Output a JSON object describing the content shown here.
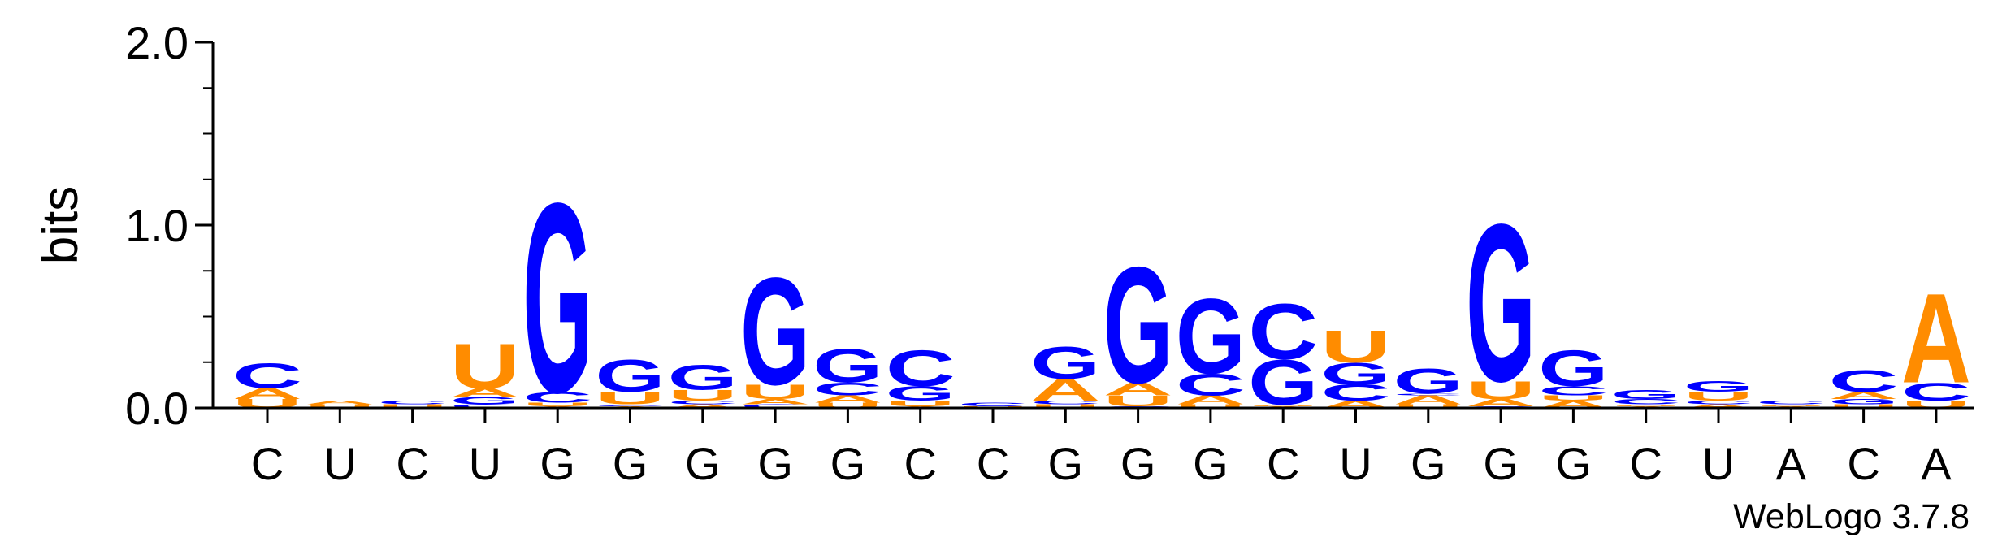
{
  "chart_data": {
    "type": "sequence-logo",
    "ylabel": "bits",
    "ylim": [
      0,
      2.0
    ],
    "yticks": [
      "0.0",
      "1.0",
      "2.0"
    ],
    "xlabels": [
      "C",
      "U",
      "C",
      "U",
      "G",
      "G",
      "G",
      "G",
      "G",
      "C",
      "C",
      "G",
      "G",
      "G",
      "C",
      "U",
      "G",
      "G",
      "G",
      "C",
      "U",
      "A",
      "C",
      "A"
    ],
    "colors": {
      "G": "#0000ff",
      "C": "#0000ff",
      "A": "#ff8c00",
      "U": "#ff8c00"
    },
    "positions": [
      [
        {
          "letter": "U",
          "bits": 0.05
        },
        {
          "letter": "A",
          "bits": 0.06
        },
        {
          "letter": "C",
          "bits": 0.14
        }
      ],
      [
        {
          "letter": "U",
          "bits": 0.02
        },
        {
          "letter": "A",
          "bits": 0.02
        }
      ],
      [
        {
          "letter": "U",
          "bits": 0.02
        },
        {
          "letter": "C",
          "bits": 0.02
        }
      ],
      [
        {
          "letter": "C",
          "bits": 0.02
        },
        {
          "letter": "G",
          "bits": 0.04
        },
        {
          "letter": "A",
          "bits": 0.05
        },
        {
          "letter": "U",
          "bits": 0.25
        }
      ],
      [
        {
          "letter": "A",
          "bits": 0.01
        },
        {
          "letter": "U",
          "bits": 0.02
        },
        {
          "letter": "C",
          "bits": 0.06
        },
        {
          "letter": "G",
          "bits": 1.06
        }
      ],
      [
        {
          "letter": "A",
          "bits": 0.01
        },
        {
          "letter": "C",
          "bits": 0.01
        },
        {
          "letter": "U",
          "bits": 0.07
        },
        {
          "letter": "G",
          "bits": 0.18
        }
      ],
      [
        {
          "letter": "A",
          "bits": 0.02
        },
        {
          "letter": "C",
          "bits": 0.02
        },
        {
          "letter": "U",
          "bits": 0.06
        },
        {
          "letter": "G",
          "bits": 0.14
        }
      ],
      [
        {
          "letter": "C",
          "bits": 0.02
        },
        {
          "letter": "A",
          "bits": 0.03
        },
        {
          "letter": "U",
          "bits": 0.08
        },
        {
          "letter": "G",
          "bits": 0.6
        }
      ],
      [
        {
          "letter": "U",
          "bits": 0.03
        },
        {
          "letter": "A",
          "bits": 0.04
        },
        {
          "letter": "C",
          "bits": 0.07
        },
        {
          "letter": "G",
          "bits": 0.19
        }
      ],
      [
        {
          "letter": "A",
          "bits": 0.01
        },
        {
          "letter": "U",
          "bits": 0.03
        },
        {
          "letter": "G",
          "bits": 0.08
        },
        {
          "letter": "C",
          "bits": 0.2
        }
      ],
      [
        {
          "letter": "U",
          "bits": 0.01
        },
        {
          "letter": "C",
          "bits": 0.02
        }
      ],
      [
        {
          "letter": "U",
          "bits": 0.02
        },
        {
          "letter": "C",
          "bits": 0.02
        },
        {
          "letter": "A",
          "bits": 0.12
        },
        {
          "letter": "G",
          "bits": 0.18
        }
      ],
      [
        {
          "letter": "C",
          "bits": 0.01
        },
        {
          "letter": "U",
          "bits": 0.06
        },
        {
          "letter": "A",
          "bits": 0.07
        },
        {
          "letter": "G",
          "bits": 0.65
        }
      ],
      [
        {
          "letter": "U",
          "bits": 0.02
        },
        {
          "letter": "A",
          "bits": 0.05
        },
        {
          "letter": "C",
          "bits": 0.12
        },
        {
          "letter": "G",
          "bits": 0.42
        }
      ],
      [
        {
          "letter": "A",
          "bits": 0.01
        },
        {
          "letter": "U",
          "bits": 0.01
        },
        {
          "letter": "G",
          "bits": 0.25
        },
        {
          "letter": "C",
          "bits": 0.31
        }
      ],
      [
        {
          "letter": "A",
          "bits": 0.04
        },
        {
          "letter": "C",
          "bits": 0.09
        },
        {
          "letter": "G",
          "bits": 0.12
        },
        {
          "letter": "U",
          "bits": 0.18
        }
      ],
      [
        {
          "letter": "U",
          "bits": 0.02
        },
        {
          "letter": "A",
          "bits": 0.05
        },
        {
          "letter": "C",
          "bits": 0.01
        },
        {
          "letter": "G",
          "bits": 0.14
        }
      ],
      [
        {
          "letter": "C",
          "bits": 0.01
        },
        {
          "letter": "A",
          "bits": 0.04
        },
        {
          "letter": "U",
          "bits": 0.1
        },
        {
          "letter": "G",
          "bits": 0.88
        }
      ],
      [
        {
          "letter": "A",
          "bits": 0.04
        },
        {
          "letter": "U",
          "bits": 0.03
        },
        {
          "letter": "C",
          "bits": 0.05
        },
        {
          "letter": "G",
          "bits": 0.2
        }
      ],
      [
        {
          "letter": "A",
          "bits": 0.01
        },
        {
          "letter": "U",
          "bits": 0.01
        },
        {
          "letter": "C",
          "bits": 0.03
        },
        {
          "letter": "G",
          "bits": 0.05
        }
      ],
      [
        {
          "letter": "A",
          "bits": 0.02
        },
        {
          "letter": "C",
          "bits": 0.02
        },
        {
          "letter": "U",
          "bits": 0.05
        },
        {
          "letter": "G",
          "bits": 0.06
        }
      ],
      [
        {
          "letter": "A",
          "bits": 0.01
        },
        {
          "letter": "U",
          "bits": 0.01
        },
        {
          "letter": "C",
          "bits": 0.02
        }
      ],
      [
        {
          "letter": "U",
          "bits": 0.02
        },
        {
          "letter": "G",
          "bits": 0.03
        },
        {
          "letter": "A",
          "bits": 0.04
        },
        {
          "letter": "C",
          "bits": 0.12
        }
      ],
      [
        {
          "letter": "U",
          "bits": 0.04
        },
        {
          "letter": "C",
          "bits": 0.1
        },
        {
          "letter": "A",
          "bits": 0.5
        }
      ]
    ]
  },
  "footer": {
    "credit": "WebLogo 3.7.8"
  }
}
